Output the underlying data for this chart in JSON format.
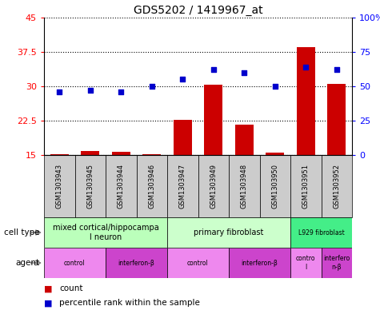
{
  "title": "GDS5202 / 1419967_at",
  "samples": [
    "GSM1303943",
    "GSM1303945",
    "GSM1303944",
    "GSM1303946",
    "GSM1303947",
    "GSM1303949",
    "GSM1303948",
    "GSM1303950",
    "GSM1303951",
    "GSM1303952"
  ],
  "counts": [
    15.1,
    15.8,
    15.7,
    15.2,
    22.7,
    30.3,
    21.6,
    15.6,
    38.5,
    30.5
  ],
  "percentiles": [
    46,
    47,
    46,
    50,
    55,
    62,
    60,
    50,
    64,
    62
  ],
  "ylim_left": [
    15,
    45
  ],
  "ylim_right": [
    0,
    100
  ],
  "yticks_left": [
    15,
    22.5,
    30,
    37.5,
    45
  ],
  "yticks_right": [
    0,
    25,
    50,
    75,
    100
  ],
  "ytick_labels_left": [
    "15",
    "22.5",
    "30",
    "37.5",
    "45"
  ],
  "ytick_labels_right": [
    "0",
    "25",
    "50",
    "75",
    "100%"
  ],
  "bar_color": "#cc0000",
  "dot_color": "#0000cc",
  "sample_bg_color": "#cccccc",
  "cell_type_groups": [
    {
      "label": "mixed cortical/hippocampa\nl neuron",
      "start": 0,
      "end": 4,
      "color": "#bbffbb"
    },
    {
      "label": "primary fibroblast",
      "start": 4,
      "end": 8,
      "color": "#ccffcc"
    },
    {
      "label": "L929 fibroblast",
      "start": 8,
      "end": 10,
      "color": "#44ee88"
    }
  ],
  "agent_groups": [
    {
      "label": "control",
      "start": 0,
      "end": 2,
      "color": "#ee88ee"
    },
    {
      "label": "interferon-β",
      "start": 2,
      "end": 4,
      "color": "#cc44cc"
    },
    {
      "label": "control",
      "start": 4,
      "end": 6,
      "color": "#ee88ee"
    },
    {
      "label": "interferon-β",
      "start": 6,
      "end": 8,
      "color": "#cc44cc"
    },
    {
      "label": "contro\nl",
      "start": 8,
      "end": 9,
      "color": "#ee88ee"
    },
    {
      "label": "interfero\nn-β",
      "start": 9,
      "end": 10,
      "color": "#cc44cc"
    }
  ],
  "legend_count_color": "#cc0000",
  "legend_dot_color": "#0000cc",
  "cell_type_label": "cell type",
  "agent_label": "agent",
  "background_color": "#ffffff"
}
